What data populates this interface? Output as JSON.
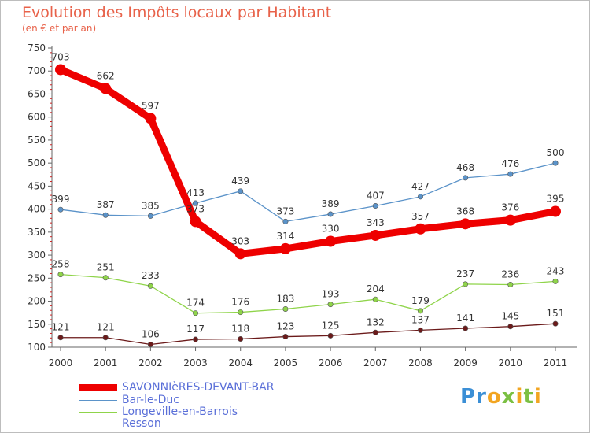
{
  "title": "Evolution des Impôts locaux par Habitant",
  "subtitle": "(en € et par an)",
  "logo": {
    "text": "Proxiti"
  },
  "chart_data": {
    "type": "line",
    "x": [
      "2000",
      "2001",
      "2002",
      "2003",
      "2004",
      "2005",
      "2006",
      "2007",
      "2008",
      "2009",
      "2010",
      "2011"
    ],
    "ylim": [
      100,
      750
    ],
    "yticks": [
      100,
      150,
      200,
      250,
      300,
      350,
      400,
      450,
      500,
      550,
      600,
      650,
      700,
      750
    ],
    "grid": false,
    "legend_position": "bottom-left",
    "series": [
      {
        "name": "SAVONNIèRES-DEVANT-BAR",
        "color": "#ee0000",
        "values": [
          703,
          662,
          597,
          373,
          303,
          314,
          330,
          343,
          357,
          368,
          376,
          395
        ]
      },
      {
        "name": "Bar-le-Duc",
        "color": "#5b93c9",
        "values": [
          399,
          387,
          385,
          413,
          439,
          373,
          389,
          407,
          427,
          468,
          476,
          500
        ]
      },
      {
        "name": "Longeville-en-Barrois",
        "color": "#8fd44a",
        "values": [
          258,
          251,
          233,
          174,
          176,
          183,
          193,
          204,
          179,
          237,
          236,
          243
        ]
      },
      {
        "name": "Resson",
        "color": "#6b1a1a",
        "values": [
          121,
          121,
          106,
          117,
          118,
          123,
          125,
          132,
          137,
          141,
          145,
          151
        ]
      }
    ]
  }
}
